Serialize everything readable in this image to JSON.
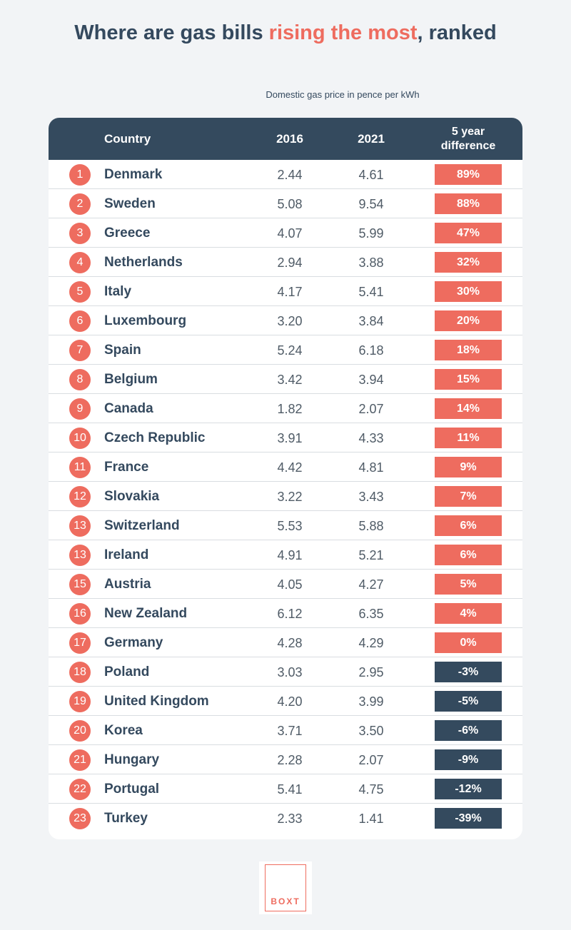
{
  "title": {
    "part1": "Where are gas bills ",
    "highlight": "rising the most",
    "part2": ", ranked"
  },
  "subtitle": "Domestic gas price in pence per kWh",
  "headers": {
    "country": "Country",
    "y2016": "2016",
    "y2021": "2021",
    "diff_line1": "5 year",
    "diff_line2": "difference"
  },
  "colors": {
    "positive": "#ee6c5f",
    "negative": "#344a5e",
    "header": "#344a5e",
    "text": "#34495e"
  },
  "logo_text": "BOXT",
  "chart_data": {
    "type": "table",
    "title": "Where are gas bills rising the most, ranked",
    "columns": [
      "Country",
      "2016",
      "2021",
      "5 year difference"
    ],
    "rows": [
      {
        "rank": "1",
        "country": "Denmark",
        "y2016": "2.44",
        "y2021": "4.61",
        "diff": "89%"
      },
      {
        "rank": "2",
        "country": "Sweden",
        "y2016": "5.08",
        "y2021": "9.54",
        "diff": "88%"
      },
      {
        "rank": "3",
        "country": "Greece",
        "y2016": "4.07",
        "y2021": "5.99",
        "diff": "47%"
      },
      {
        "rank": "4",
        "country": "Netherlands",
        "y2016": "2.94",
        "y2021": "3.88",
        "diff": "32%"
      },
      {
        "rank": "5",
        "country": "Italy",
        "y2016": "4.17",
        "y2021": "5.41",
        "diff": "30%"
      },
      {
        "rank": "6",
        "country": "Luxembourg",
        "y2016": "3.20",
        "y2021": "3.84",
        "diff": "20%"
      },
      {
        "rank": "7",
        "country": "Spain",
        "y2016": "5.24",
        "y2021": "6.18",
        "diff": "18%"
      },
      {
        "rank": "8",
        "country": "Belgium",
        "y2016": "3.42",
        "y2021": "3.94",
        "diff": "15%"
      },
      {
        "rank": "9",
        "country": "Canada",
        "y2016": "1.82",
        "y2021": "2.07",
        "diff": "14%"
      },
      {
        "rank": "10",
        "country": "Czech Republic",
        "y2016": "3.91",
        "y2021": "4.33",
        "diff": "11%"
      },
      {
        "rank": "11",
        "country": "France",
        "y2016": "4.42",
        "y2021": "4.81",
        "diff": "9%"
      },
      {
        "rank": "12",
        "country": "Slovakia",
        "y2016": "3.22",
        "y2021": "3.43",
        "diff": "7%"
      },
      {
        "rank": "13",
        "country": "Switzerland",
        "y2016": "5.53",
        "y2021": "5.88",
        "diff": "6%"
      },
      {
        "rank": "13",
        "country": "Ireland",
        "y2016": "4.91",
        "y2021": "5.21",
        "diff": "6%"
      },
      {
        "rank": "15",
        "country": "Austria",
        "y2016": "4.05",
        "y2021": "4.27",
        "diff": "5%"
      },
      {
        "rank": "16",
        "country": "New Zealand",
        "y2016": "6.12",
        "y2021": "6.35",
        "diff": "4%"
      },
      {
        "rank": "17",
        "country": "Germany",
        "y2016": "4.28",
        "y2021": "4.29",
        "diff": "0%"
      },
      {
        "rank": "18",
        "country": "Poland",
        "y2016": "3.03",
        "y2021": "2.95",
        "diff": "-3%"
      },
      {
        "rank": "19",
        "country": "United Kingdom",
        "y2016": "4.20",
        "y2021": "3.99",
        "diff": "-5%"
      },
      {
        "rank": "20",
        "country": "Korea",
        "y2016": "3.71",
        "y2021": "3.50",
        "diff": "-6%"
      },
      {
        "rank": "21",
        "country": "Hungary",
        "y2016": "2.28",
        "y2021": "2.07",
        "diff": "-9%"
      },
      {
        "rank": "22",
        "country": "Portugal",
        "y2016": "5.41",
        "y2021": "4.75",
        "diff": "-12%"
      },
      {
        "rank": "23",
        "country": "Turkey",
        "y2016": "2.33",
        "y2021": "1.41",
        "diff": "-39%"
      }
    ]
  }
}
